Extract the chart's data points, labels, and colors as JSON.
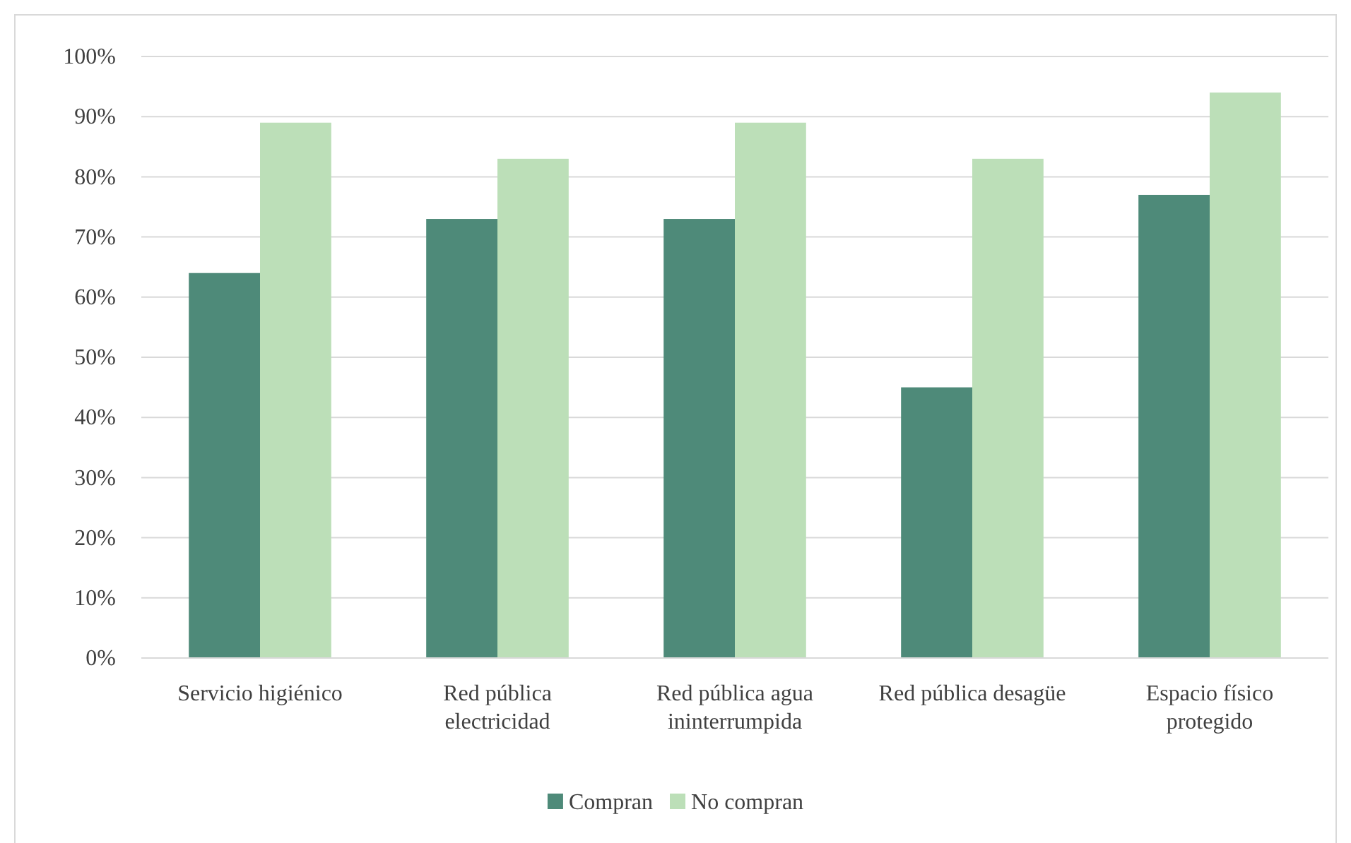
{
  "chart_data": {
    "type": "bar",
    "categories": [
      "Servicio higiénico",
      "Red pública electricidad",
      "Red pública agua ininterrumpida",
      "Red pública desagüe",
      "Espacio físico protegido"
    ],
    "series": [
      {
        "name": "Compran",
        "color": "#4e8a79",
        "values": [
          64,
          73,
          73,
          45,
          77
        ]
      },
      {
        "name": "No compran",
        "color": "#bcdfb8",
        "values": [
          89,
          83,
          89,
          83,
          94
        ]
      }
    ],
    "ylim": [
      0,
      100
    ],
    "yticks": [
      {
        "value": 0,
        "label": "0%"
      },
      {
        "value": 10,
        "label": "10%"
      },
      {
        "value": 20,
        "label": "20%"
      },
      {
        "value": 30,
        "label": "30%"
      },
      {
        "value": 40,
        "label": "40%"
      },
      {
        "value": 50,
        "label": "50%"
      },
      {
        "value": 60,
        "label": "60%"
      },
      {
        "value": 70,
        "label": "70%"
      },
      {
        "value": 80,
        "label": "80%"
      },
      {
        "value": 90,
        "label": "90%"
      },
      {
        "value": 100,
        "label": "100%"
      }
    ],
    "grid": "y",
    "legend": "bottom"
  }
}
